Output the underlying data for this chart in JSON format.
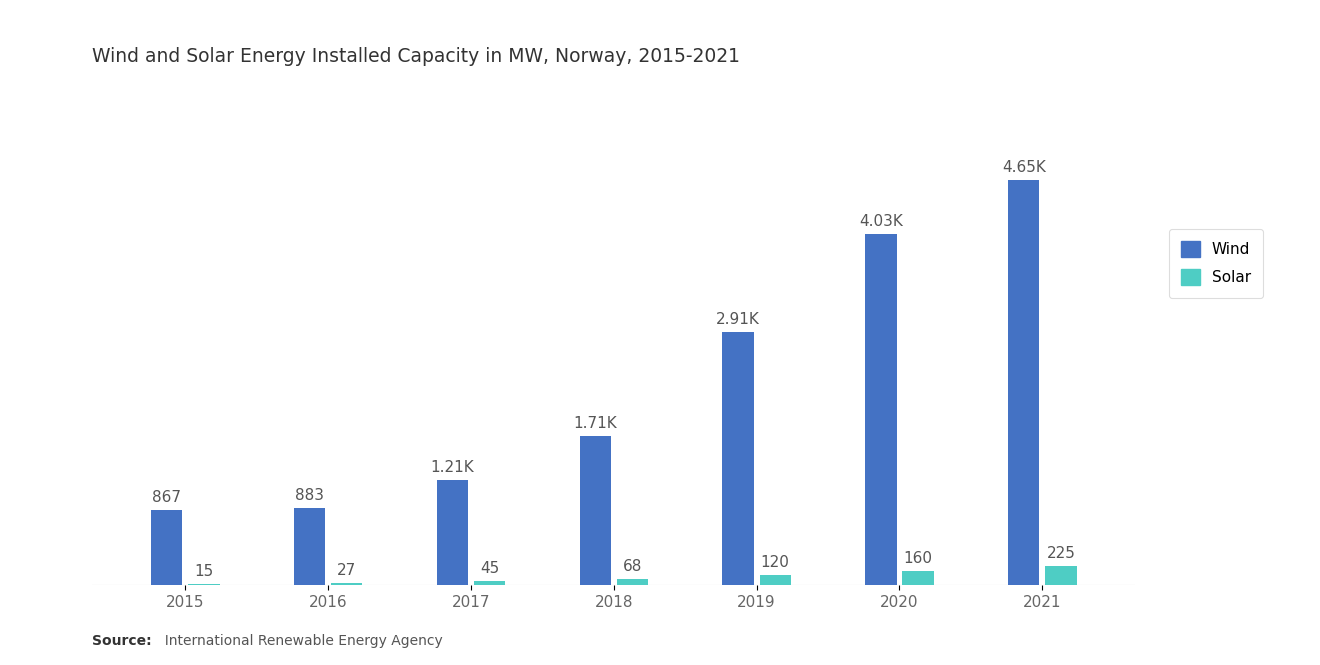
{
  "title": "Wind and Solar Energy Installed Capacity in MW, Norway, 2015-2021",
  "years": [
    2015,
    2016,
    2017,
    2018,
    2019,
    2020,
    2021
  ],
  "wind_values": [
    867,
    883,
    1210,
    1710,
    2910,
    4030,
    4650
  ],
  "solar_values": [
    15,
    27,
    45,
    68,
    120,
    160,
    225
  ],
  "wind_labels": [
    "867",
    "883",
    "1.21K",
    "1.71K",
    "2.91K",
    "4.03K",
    "4.65K"
  ],
  "solar_labels": [
    "15",
    "27",
    "45",
    "68",
    "120",
    "160",
    "225"
  ],
  "wind_color": "#4472C4",
  "solar_color": "#4ECDC4",
  "background_color": "#FFFFFF",
  "title_fontsize": 13.5,
  "label_fontsize": 11,
  "tick_fontsize": 11,
  "source_bold": "Source:",
  "source_normal": "  International Renewable Energy Agency",
  "legend_labels": [
    "Wind",
    "Solar"
  ],
  "bar_width": 0.22,
  "bar_gap": 0.04,
  "ylim": [
    0,
    5800
  ]
}
